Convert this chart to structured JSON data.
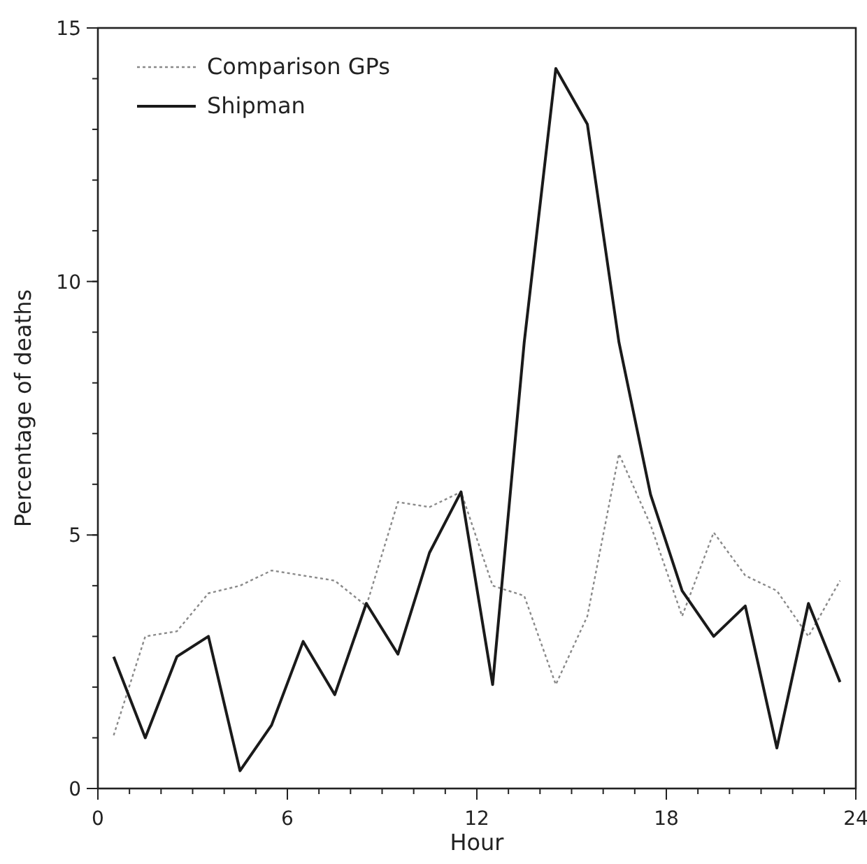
{
  "chart_data": {
    "type": "line",
    "xlabel": "Hour",
    "ylabel": "Percentage of deaths",
    "x": [
      0.5,
      1.5,
      2.5,
      3.5,
      4.5,
      5.5,
      6.5,
      7.5,
      8.5,
      9.5,
      10.5,
      11.5,
      12.5,
      13.5,
      14.5,
      15.5,
      16.5,
      17.5,
      18.5,
      19.5,
      20.5,
      21.5,
      22.5,
      23.5
    ],
    "series": [
      {
        "name": "Comparison GPs",
        "color": "#8a8a8a",
        "line_style": "dotted",
        "values": [
          1.05,
          3.0,
          3.1,
          3.85,
          4.0,
          4.3,
          4.2,
          4.1,
          3.6,
          5.65,
          5.55,
          5.85,
          4.0,
          3.8,
          2.05,
          3.4,
          6.6,
          5.2,
          3.4,
          5.05,
          4.2,
          3.9,
          3.0,
          4.1
        ]
      },
      {
        "name": "Shipman",
        "color": "#1a1a1a",
        "line_style": "solid",
        "values": [
          2.6,
          1.0,
          2.6,
          3.0,
          0.35,
          1.25,
          2.9,
          1.85,
          3.65,
          2.65,
          4.65,
          5.85,
          2.05,
          8.8,
          14.2,
          13.1,
          8.8,
          5.8,
          3.9,
          3.0,
          3.6,
          0.8,
          3.65,
          2.1
        ]
      }
    ],
    "xlim": [
      0,
      24
    ],
    "xticks": [
      0,
      6,
      12,
      18,
      24
    ],
    "ylim": [
      0,
      15
    ],
    "yticks": [
      0,
      5,
      10,
      15
    ],
    "legend": "top left",
    "marker": "none",
    "grid": false
  }
}
